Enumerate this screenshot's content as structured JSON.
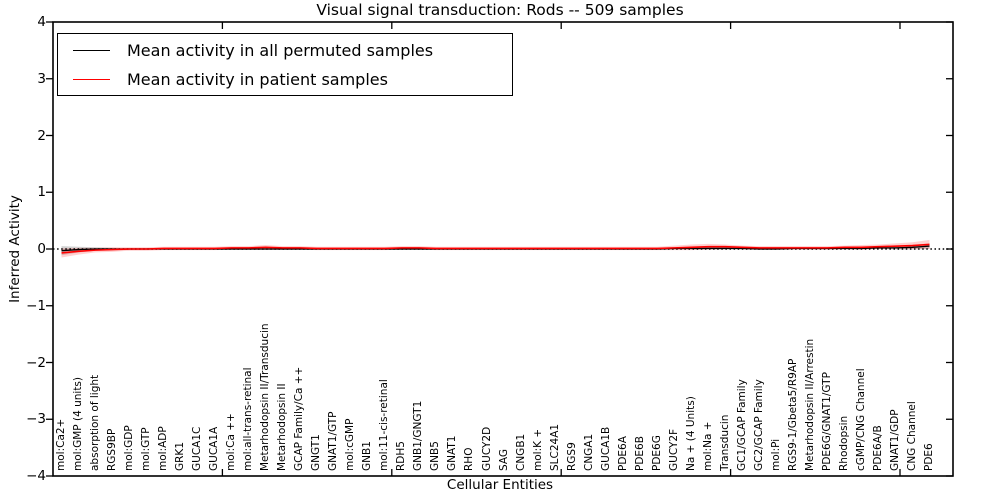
{
  "title": "Visual signal transduction: Rods -- 509 samples",
  "legend": {
    "items": [
      {
        "label": "Mean activity in all permuted samples",
        "color": "#000000"
      },
      {
        "label": "Mean activity in patient samples",
        "color": "#ff0000"
      }
    ],
    "position": "upper left"
  },
  "colors": {
    "frame": "#000000",
    "zero_line": "#000000",
    "background": "#ffffff",
    "permuted_band": "rgba(110,110,110,0.30)",
    "patient_band": "rgba(255,0,0,0.18)"
  },
  "chart_data": {
    "type": "line",
    "title": "Visual signal transduction: Rods -- 509 samples",
    "xlabel": "Cellular Entities",
    "ylabel": "Inferred Activity",
    "ylim": [
      -4,
      4
    ],
    "yticks": [
      4,
      3,
      2,
      1,
      0,
      -1,
      -2,
      -3,
      -4
    ],
    "ytick_labels": [
      "4",
      "3",
      "2",
      "1",
      "0",
      "−1",
      "−2",
      "−3",
      "−4"
    ],
    "xtick_decades": [
      10,
      20,
      30,
      40,
      50
    ],
    "grid": false,
    "zero_line_style": "dotted",
    "legend_position": "upper left",
    "categories": [
      "mol:Ca2+",
      "mol:GMP (4 units)",
      "absorption of light",
      "RGS9BP",
      "mol:GDP",
      "mol:GTP",
      "mol:ADP",
      "GRK1",
      "GUCA1C",
      "GUCA1A",
      "mol:Ca ++",
      "mol:all-trans-retinal",
      "Metarhodopsin II/Transducin",
      "Metarhodopsin II",
      "GCAP Family/Ca ++",
      "GNGT1",
      "GNAT1/GTP",
      "mol:cGMP",
      "GNB1",
      "mol:11-cis-retinal",
      "RDH5",
      "GNB1/GNGT1",
      "GNB5",
      "GNAT1",
      "RHO",
      "GUCY2D",
      "SAG",
      "CNGB1",
      "mol:K +",
      "SLC24A1",
      "RGS9",
      "CNGA1",
      "GUCA1B",
      "PDE6A",
      "PDE6B",
      "PDE6G",
      "GUCY2F",
      "Na + (4 Units)",
      "mol:Na +",
      "Transducin",
      "GC1/GCAP Family",
      "GC2/GCAP Family",
      "mol:Pi",
      "RGS9-1/Gbeta5/R9AP",
      "Metarhodopsin II/Arrestin",
      "PDE6G/GNAT1/GTP",
      "Rhodopsin",
      "cGMP/CNG Channel",
      "PDE6A/B",
      "GNAT1/GDP",
      "CNG Channel",
      "PDE6"
    ],
    "series": [
      {
        "name": "Mean activity in all permuted samples",
        "color": "#000000",
        "values": [
          -0.03,
          -0.01,
          0,
          0,
          0,
          0,
          0,
          0,
          0,
          0,
          0,
          0,
          0,
          0,
          0,
          0,
          0,
          0,
          0,
          0,
          0,
          0,
          0,
          0,
          0,
          0,
          0,
          0,
          0,
          0,
          0,
          0,
          0,
          0,
          0,
          0,
          0.01,
          0.01,
          0.01,
          0.01,
          0.01,
          0,
          0,
          0.01,
          0.01,
          0.01,
          0.01,
          0.01,
          0.02,
          0.02,
          0.03,
          0.05
        ],
        "band_halfwidth": [
          0.08,
          0.05,
          0.03,
          0.02,
          0.015,
          0.015,
          0.015,
          0.015,
          0.015,
          0.015,
          0.015,
          0.015,
          0.015,
          0.015,
          0.015,
          0.015,
          0.015,
          0.015,
          0.015,
          0.015,
          0.015,
          0.015,
          0.015,
          0.015,
          0.015,
          0.015,
          0.015,
          0.015,
          0.015,
          0.015,
          0.015,
          0.015,
          0.015,
          0.015,
          0.015,
          0.015,
          0.015,
          0.015,
          0.015,
          0.015,
          0.015,
          0.015,
          0.015,
          0.015,
          0.015,
          0.015,
          0.015,
          0.015,
          0.02,
          0.03,
          0.04,
          0.05
        ]
      },
      {
        "name": "Mean activity in patient samples",
        "color": "#ff0000",
        "values": [
          -0.07,
          -0.04,
          -0.02,
          -0.01,
          0,
          0,
          0.01,
          0.01,
          0.01,
          0.01,
          0.02,
          0.02,
          0.03,
          0.02,
          0.02,
          0.01,
          0.01,
          0.01,
          0.01,
          0.01,
          0.02,
          0.02,
          0.01,
          0.01,
          0.01,
          0.01,
          0.01,
          0.01,
          0.01,
          0.01,
          0.01,
          0.01,
          0.01,
          0.01,
          0.01,
          0.01,
          0.02,
          0.03,
          0.04,
          0.04,
          0.03,
          0.02,
          0.02,
          0.02,
          0.02,
          0.02,
          0.03,
          0.03,
          0.04,
          0.05,
          0.06,
          0.08
        ],
        "band_halfwidth": [
          0.08,
          0.06,
          0.04,
          0.04,
          0.03,
          0.03,
          0.03,
          0.03,
          0.03,
          0.03,
          0.03,
          0.03,
          0.04,
          0.03,
          0.03,
          0.03,
          0.03,
          0.03,
          0.03,
          0.03,
          0.03,
          0.03,
          0.03,
          0.03,
          0.03,
          0.03,
          0.03,
          0.03,
          0.03,
          0.03,
          0.03,
          0.03,
          0.03,
          0.03,
          0.03,
          0.03,
          0.04,
          0.05,
          0.05,
          0.04,
          0.03,
          0.03,
          0.03,
          0.03,
          0.03,
          0.03,
          0.03,
          0.04,
          0.04,
          0.05,
          0.06,
          0.08
        ]
      }
    ]
  }
}
